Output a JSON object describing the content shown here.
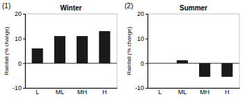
{
  "chart_data": [
    {
      "type": "bar",
      "title": "Winter",
      "annotations": [
        "(1)"
      ],
      "categories": [
        "L",
        "ML",
        "MH",
        "H"
      ],
      "values": [
        6,
        11,
        11,
        13
      ],
      "color": "#1a1a1a",
      "ylabel": "Rainfall (% change)",
      "ylim": [
        -10,
        20
      ],
      "yticks": [
        -10,
        0,
        10,
        20
      ],
      "grid": false
    },
    {
      "type": "bar",
      "title": "Summer",
      "annotations": [
        "(2)"
      ],
      "categories": [
        "L",
        "ML",
        "MH",
        "H"
      ],
      "values": [
        0,
        1.2,
        -5.5,
        -5.5
      ],
      "color": "#1a1a1a",
      "ylabel": "Rainfall (% change)",
      "ylim": [
        -10,
        20
      ],
      "yticks": [
        -10,
        0,
        10,
        20
      ],
      "grid": false
    }
  ]
}
